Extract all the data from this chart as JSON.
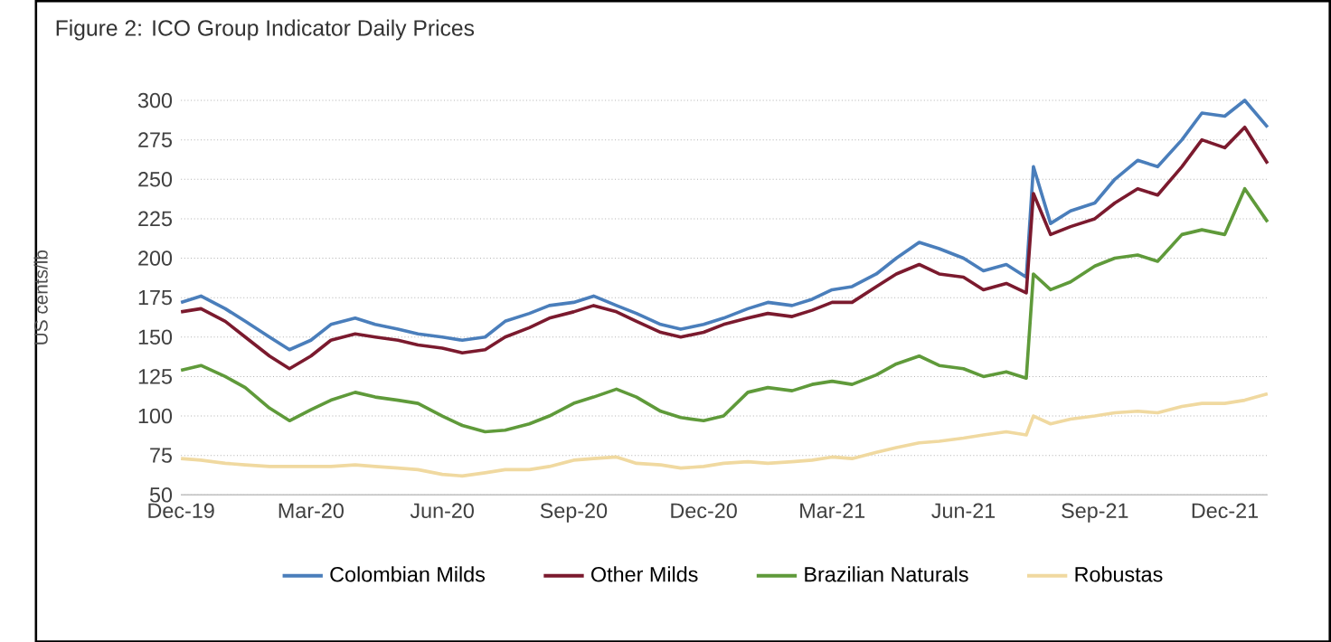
{
  "chart_data": {
    "type": "line",
    "title": "Figure 2: ICO Group Indicator Daily Prices",
    "ylabel": "US cents/lb",
    "x": [
      "2019-12-01",
      "2019-12-15",
      "2020-01-01",
      "2020-01-15",
      "2020-02-01",
      "2020-02-15",
      "2020-03-01",
      "2020-03-15",
      "2020-04-01",
      "2020-04-15",
      "2020-05-01",
      "2020-05-15",
      "2020-06-01",
      "2020-06-15",
      "2020-07-01",
      "2020-07-15",
      "2020-08-01",
      "2020-08-15",
      "2020-09-01",
      "2020-09-15",
      "2020-10-01",
      "2020-10-15",
      "2020-11-01",
      "2020-11-15",
      "2020-12-01",
      "2020-12-15",
      "2021-01-01",
      "2021-01-15",
      "2021-02-01",
      "2021-02-15",
      "2021-03-01",
      "2021-03-15",
      "2021-04-01",
      "2021-04-15",
      "2021-05-01",
      "2021-05-15",
      "2021-06-01",
      "2021-06-15",
      "2021-07-01",
      "2021-07-15",
      "2021-07-20",
      "2021-08-01",
      "2021-08-15",
      "2021-09-01",
      "2021-09-15",
      "2021-10-01",
      "2021-10-15",
      "2021-11-01",
      "2021-11-15",
      "2021-12-01",
      "2021-12-15",
      "2021-12-31"
    ],
    "series": [
      {
        "name": "Colombian Milds",
        "color": "#4a7ebb",
        "values": [
          172,
          176,
          168,
          160,
          150,
          142,
          148,
          158,
          162,
          158,
          155,
          152,
          150,
          148,
          150,
          160,
          165,
          170,
          172,
          176,
          170,
          165,
          158,
          155,
          158,
          162,
          168,
          172,
          170,
          174,
          180,
          182,
          190,
          200,
          210,
          206,
          200,
          192,
          196,
          188,
          258,
          222,
          230,
          235,
          250,
          262,
          258,
          275,
          292,
          290,
          300,
          283
        ]
      },
      {
        "name": "Other Milds",
        "color": "#7b1a2e",
        "values": [
          166,
          168,
          160,
          150,
          138,
          130,
          138,
          148,
          152,
          150,
          148,
          145,
          143,
          140,
          142,
          150,
          156,
          162,
          166,
          170,
          166,
          160,
          153,
          150,
          153,
          158,
          162,
          165,
          163,
          167,
          172,
          172,
          182,
          190,
          196,
          190,
          188,
          180,
          184,
          178,
          241,
          215,
          220,
          225,
          235,
          244,
          240,
          258,
          275,
          270,
          283,
          260
        ]
      },
      {
        "name": "Brazilian Naturals",
        "color": "#5f9a3a",
        "values": [
          129,
          132,
          125,
          118,
          105,
          97,
          104,
          110,
          115,
          112,
          110,
          108,
          100,
          94,
          90,
          91,
          95,
          100,
          108,
          112,
          117,
          112,
          103,
          99,
          97,
          100,
          115,
          118,
          116,
          120,
          122,
          120,
          126,
          133,
          138,
          132,
          130,
          125,
          128,
          124,
          190,
          180,
          185,
          195,
          200,
          202,
          198,
          215,
          218,
          215,
          244,
          223
        ]
      },
      {
        "name": "Robustas",
        "color": "#f0d9a0",
        "values": [
          73,
          72,
          70,
          69,
          68,
          68,
          68,
          68,
          69,
          68,
          67,
          66,
          63,
          62,
          64,
          66,
          66,
          68,
          72,
          73,
          74,
          70,
          69,
          67,
          68,
          70,
          71,
          70,
          71,
          72,
          74,
          73,
          77,
          80,
          83,
          84,
          86,
          88,
          90,
          88,
          100,
          95,
          98,
          100,
          102,
          103,
          102,
          106,
          108,
          108,
          110,
          114
        ]
      }
    ],
    "xlim": [
      "2019-12-01",
      "2021-12-31"
    ],
    "xticks": [
      {
        "value": "2019-12-01",
        "label": "Dec-19"
      },
      {
        "value": "2020-03-01",
        "label": "Mar-20"
      },
      {
        "value": "2020-06-01",
        "label": "Jun-20"
      },
      {
        "value": "2020-09-01",
        "label": "Sep-20"
      },
      {
        "value": "2020-12-01",
        "label": "Dec-20"
      },
      {
        "value": "2021-03-01",
        "label": "Mar-21"
      },
      {
        "value": "2021-06-01",
        "label": "Jun-21"
      },
      {
        "value": "2021-09-01",
        "label": "Sep-21"
      },
      {
        "value": "2021-12-01",
        "label": "Dec-21"
      }
    ],
    "ylim": [
      50,
      300
    ],
    "yticks": [
      50,
      75,
      100,
      125,
      150,
      175,
      200,
      225,
      250,
      275,
      300
    ],
    "grid": "y",
    "legend": "bottom",
    "marker": "none",
    "line_style": "solid"
  }
}
